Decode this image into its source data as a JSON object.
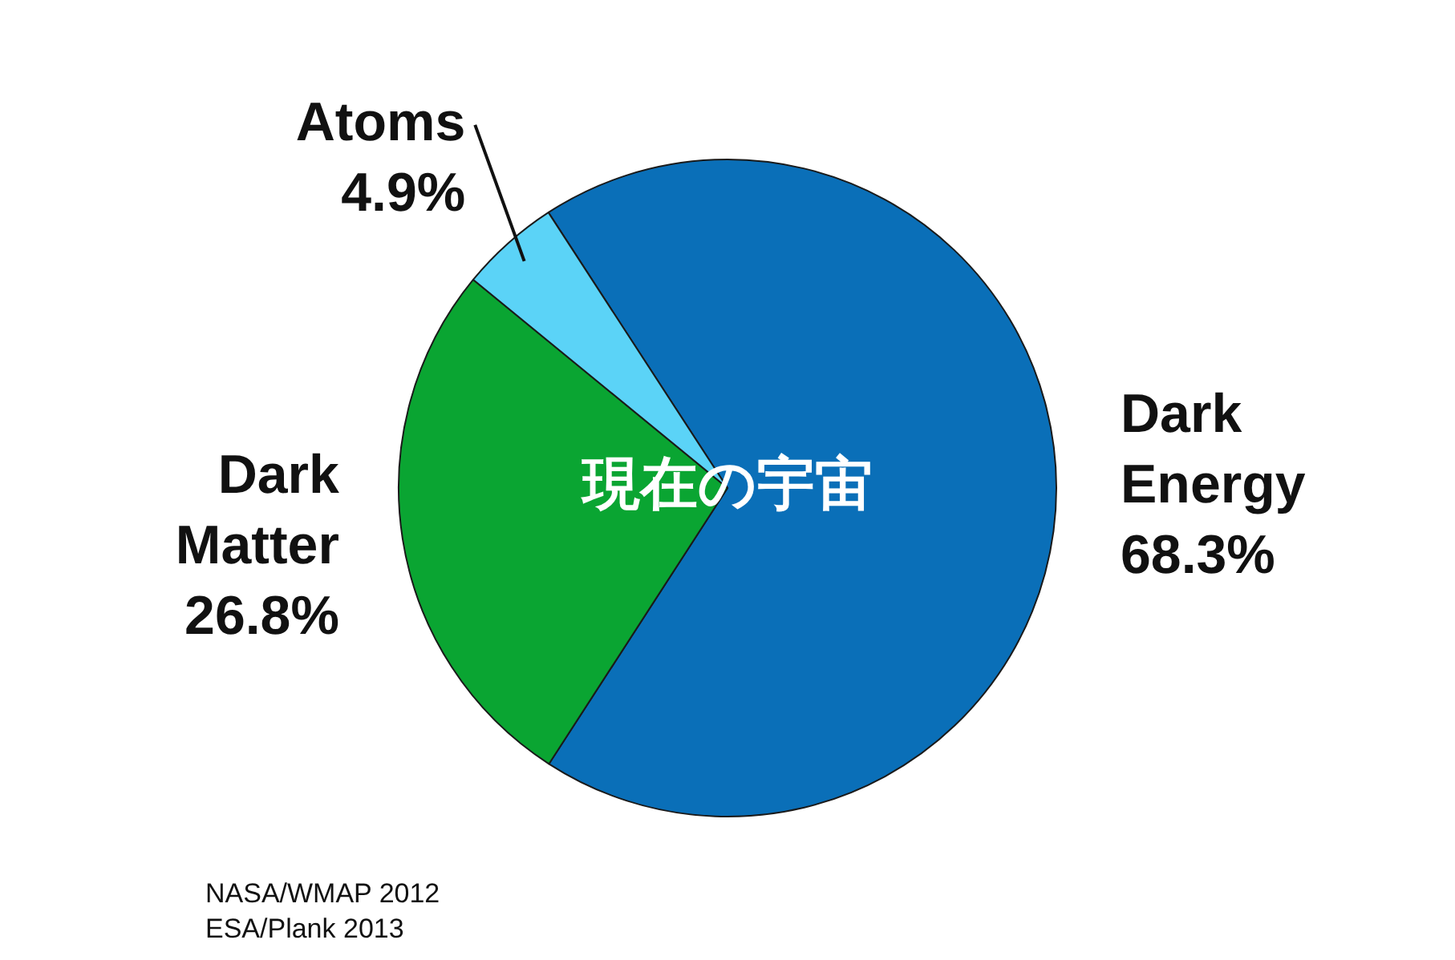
{
  "chart_data": {
    "type": "pie",
    "title": "現在の宇宙",
    "categories": [
      "Dark Energy",
      "Dark Matter",
      "Atoms"
    ],
    "values": [
      68.3,
      26.8,
      4.9
    ],
    "colors": [
      "#0a6fb8",
      "#0aa532",
      "#5bd3f7"
    ],
    "value_labels": [
      "68.3%",
      "26.8%",
      "4.9%"
    ],
    "legend": false,
    "annotations": [
      "NASA/WMAP 2012",
      "ESA/Plank 2013"
    ]
  }
}
